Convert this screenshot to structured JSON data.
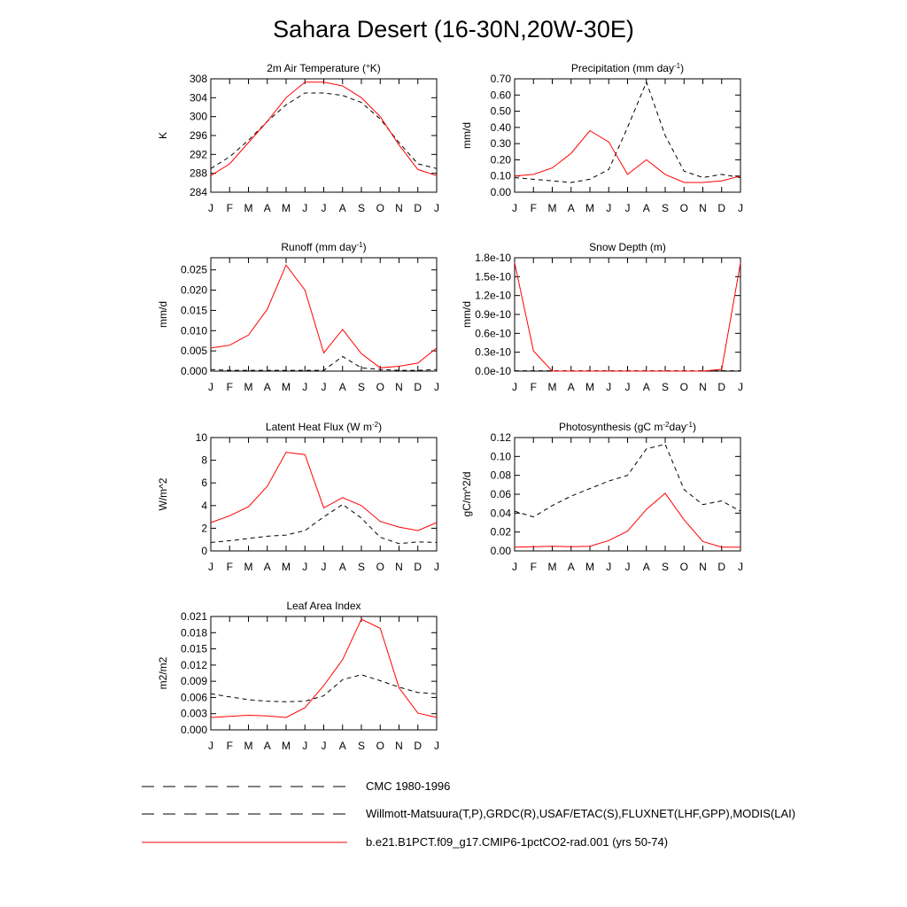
{
  "title": "Sahara Desert (16-30N,20W-30E)",
  "legend": [
    {
      "label": "CMC 1980-1996",
      "style": "dashed",
      "color": "#000000"
    },
    {
      "label": "Willmott-Matsuura(T,P),GRDC(R),USAF/ETAC(S),FLUXNET(LHF,GPP),MODIS(LAI)",
      "style": "dashed",
      "color": "#000000"
    },
    {
      "label": "b.e21.B1PCT.f09_g17.CMIP6-1pctCO2-rad.001 (yrs 50-74)",
      "style": "solid",
      "color": "#ff0000"
    }
  ],
  "chart_data": [
    {
      "type": "line",
      "title": "2m Air Temperature (°K)",
      "ylabel": "K",
      "x": [
        "J",
        "F",
        "M",
        "A",
        "M",
        "J",
        "J",
        "A",
        "S",
        "O",
        "N",
        "D",
        "J"
      ],
      "ylim": [
        284,
        308
      ],
      "yticks": [
        284,
        288,
        292,
        296,
        300,
        304,
        308
      ],
      "ytick_labels": [
        "284",
        "288",
        "292",
        "296",
        "300",
        "304",
        "308"
      ],
      "series": [
        {
          "values": [
            289.0,
            291.5,
            295.0,
            299.0,
            302.5,
            305.0,
            305.0,
            304.5,
            303.0,
            299.5,
            294.5,
            290.0,
            289.0
          ],
          "style": "dashed",
          "color": "#000000"
        },
        {
          "values": [
            287.5,
            290.0,
            294.5,
            299.0,
            304.0,
            307.3,
            307.3,
            306.5,
            304.0,
            300.0,
            294.0,
            288.8,
            287.5
          ],
          "style": "solid",
          "color": "#ff0000"
        }
      ]
    },
    {
      "type": "line",
      "title": "Precipitation (mm day⁻¹)",
      "ylabel": "mm/d",
      "x": [
        "J",
        "F",
        "M",
        "A",
        "M",
        "J",
        "J",
        "A",
        "S",
        "O",
        "N",
        "D",
        "J"
      ],
      "ylim": [
        0,
        0.7
      ],
      "yticks": [
        0,
        0.1,
        0.2,
        0.3,
        0.4,
        0.5,
        0.6,
        0.7
      ],
      "ytick_labels": [
        "0.00",
        "0.10",
        "0.20",
        "0.30",
        "0.40",
        "0.50",
        "0.60",
        "0.70"
      ],
      "series": [
        {
          "values": [
            0.09,
            0.08,
            0.07,
            0.06,
            0.08,
            0.14,
            0.4,
            0.68,
            0.35,
            0.13,
            0.09,
            0.11,
            0.09
          ],
          "style": "dashed",
          "color": "#000000"
        },
        {
          "values": [
            0.1,
            0.11,
            0.15,
            0.24,
            0.38,
            0.31,
            0.11,
            0.2,
            0.11,
            0.06,
            0.06,
            0.07,
            0.1
          ],
          "style": "solid",
          "color": "#ff0000"
        }
      ]
    },
    {
      "type": "line",
      "title": "Runoff (mm day⁻¹)",
      "ylabel": "mm/d",
      "x": [
        "J",
        "F",
        "M",
        "A",
        "M",
        "J",
        "J",
        "A",
        "S",
        "O",
        "N",
        "D",
        "J"
      ],
      "ylim": [
        0,
        0.028
      ],
      "yticks": [
        0,
        0.005,
        0.01,
        0.015,
        0.02,
        0.025
      ],
      "ytick_labels": [
        "0.000",
        "0.005",
        "0.010",
        "0.015",
        "0.020",
        "0.025"
      ],
      "series": [
        {
          "values": [
            0.0004,
            0.0002,
            0.0002,
            0.0002,
            0.0002,
            0.0002,
            0.0002,
            0.0036,
            0.0008,
            0.0004,
            0.0002,
            0.0002,
            0.0004
          ],
          "style": "dashed",
          "color": "#000000"
        },
        {
          "values": [
            0.0057,
            0.0064,
            0.0089,
            0.0153,
            0.0262,
            0.02,
            0.0045,
            0.0103,
            0.0043,
            0.0008,
            0.0012,
            0.002,
            0.0057
          ],
          "style": "solid",
          "color": "#ff0000"
        }
      ]
    },
    {
      "type": "line",
      "title": "Snow Depth (m)",
      "ylabel": "mm/d",
      "x": [
        "J",
        "F",
        "M",
        "A",
        "M",
        "J",
        "J",
        "A",
        "S",
        "O",
        "N",
        "D",
        "J"
      ],
      "ylim": [
        0,
        1.8
      ],
      "yticks": [
        0,
        0.3,
        0.6,
        0.9,
        1.2,
        1.5,
        1.8
      ],
      "ytick_labels": [
        "0.0e-10",
        "0.3e-10",
        "0.6e-10",
        "0.9e-10",
        "1.2e-10",
        "1.5e-10",
        "1.8e-10"
      ],
      "series": [
        {
          "values": [
            0.005,
            0.005,
            0.005,
            0.005,
            0.005,
            0.005,
            0.005,
            0.005,
            0.005,
            0.005,
            0.005,
            0.005,
            0.005
          ],
          "style": "dashed",
          "color": "#000000"
        },
        {
          "values": [
            1.72,
            0.32,
            0.0,
            0.0,
            0.0,
            0.0,
            0.0,
            0.0,
            0.0,
            0.0,
            0.0,
            0.03,
            1.72
          ],
          "style": "solid",
          "color": "#ff0000"
        }
      ]
    },
    {
      "type": "line",
      "title": "Latent Heat Flux (W m⁻²)",
      "ylabel": "W/m^2",
      "x": [
        "J",
        "F",
        "M",
        "A",
        "M",
        "J",
        "J",
        "A",
        "S",
        "O",
        "N",
        "D",
        "J"
      ],
      "ylim": [
        0,
        10
      ],
      "yticks": [
        0,
        2,
        4,
        6,
        8,
        10
      ],
      "ytick_labels": [
        "0",
        "2",
        "4",
        "6",
        "8",
        "10"
      ],
      "series": [
        {
          "values": [
            0.75,
            0.9,
            1.1,
            1.3,
            1.4,
            1.8,
            3.0,
            4.1,
            2.9,
            1.2,
            0.65,
            0.8,
            0.75
          ],
          "style": "dashed",
          "color": "#000000"
        },
        {
          "values": [
            2.5,
            3.1,
            3.9,
            5.7,
            8.7,
            8.5,
            3.8,
            4.7,
            4.0,
            2.6,
            2.1,
            1.8,
            2.5
          ],
          "style": "solid",
          "color": "#ff0000"
        }
      ]
    },
    {
      "type": "line",
      "title": "Photosynthesis (gC m⁻²day⁻¹)",
      "ylabel": "gC/m^2/d",
      "x": [
        "J",
        "F",
        "M",
        "A",
        "M",
        "J",
        "J",
        "A",
        "S",
        "O",
        "N",
        "D",
        "J"
      ],
      "ylim": [
        0,
        0.12
      ],
      "yticks": [
        0,
        0.02,
        0.04,
        0.06,
        0.08,
        0.1,
        0.12
      ],
      "ytick_labels": [
        "0.00",
        "0.02",
        "0.04",
        "0.06",
        "0.08",
        "0.10",
        "0.12"
      ],
      "series": [
        {
          "values": [
            0.042,
            0.036,
            0.048,
            0.058,
            0.066,
            0.074,
            0.08,
            0.108,
            0.113,
            0.065,
            0.049,
            0.053,
            0.042
          ],
          "style": "dashed",
          "color": "#000000"
        },
        {
          "values": [
            0.004,
            0.0045,
            0.005,
            0.0045,
            0.005,
            0.011,
            0.021,
            0.044,
            0.061,
            0.033,
            0.01,
            0.004,
            0.004
          ],
          "style": "solid",
          "color": "#ff0000"
        }
      ]
    },
    {
      "type": "line",
      "title": "Leaf Area Index",
      "ylabel": "m2/m2",
      "x": [
        "J",
        "F",
        "M",
        "A",
        "M",
        "J",
        "J",
        "A",
        "S",
        "O",
        "N",
        "D",
        "J"
      ],
      "ylim": [
        0,
        0.021
      ],
      "yticks": [
        0,
        0.003,
        0.006,
        0.009,
        0.012,
        0.015,
        0.018,
        0.021
      ],
      "ytick_labels": [
        "0.000",
        "0.003",
        "0.006",
        "0.009",
        "0.012",
        "0.015",
        "0.018",
        "0.021"
      ],
      "series": [
        {
          "values": [
            0.0067,
            0.0061,
            0.0056,
            0.0053,
            0.0052,
            0.0053,
            0.0063,
            0.0093,
            0.0102,
            0.0091,
            0.0079,
            0.0069,
            0.0067
          ],
          "style": "dashed",
          "color": "#000000"
        },
        {
          "values": [
            0.0023,
            0.0025,
            0.0027,
            0.0026,
            0.0023,
            0.0041,
            0.0082,
            0.013,
            0.0205,
            0.0188,
            0.0078,
            0.0031,
            0.0023
          ],
          "style": "solid",
          "color": "#ff0000"
        }
      ]
    }
  ]
}
